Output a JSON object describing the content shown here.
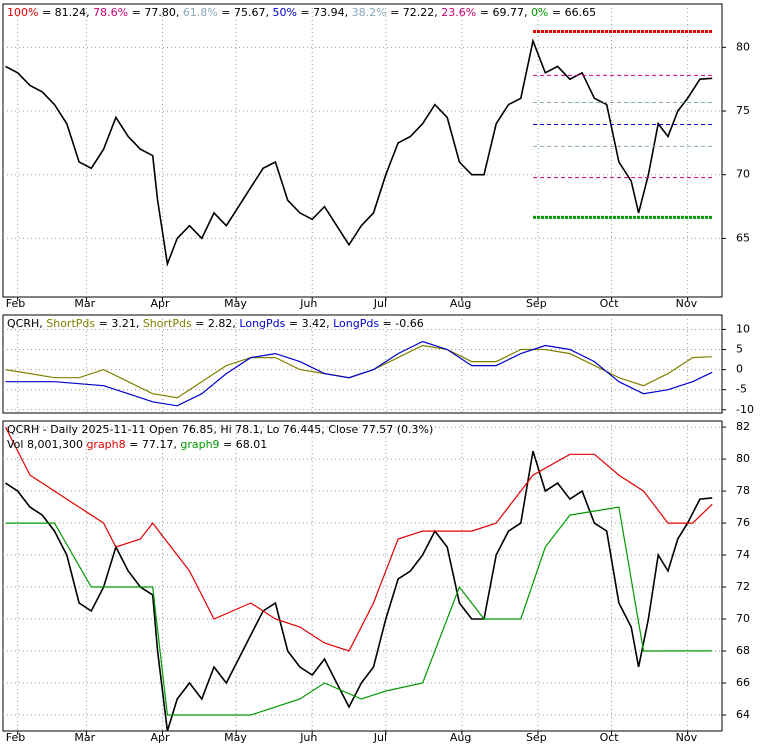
{
  "chart_data": [
    {
      "type": "line",
      "ticker": "",
      "legend": [
        {
          "name": "100%",
          "value": 81.24,
          "value_label": "= 81.24,",
          "color": "#e00000"
        },
        {
          "name": "78.6%",
          "value": 77.8,
          "value_label": "= 77.80,",
          "color": "#cc0077"
        },
        {
          "name": "61.8%",
          "value": 75.67,
          "value_label": "= 75.67,",
          "color": "#88aabb"
        },
        {
          "name": "50%",
          "value": 73.94,
          "value_label": "= 73.94,",
          "color": "#0000cc"
        },
        {
          "name": "38.2%",
          "value": 72.22,
          "value_label": "= 72.22,",
          "color": "#88aabb"
        },
        {
          "name": "23.6%",
          "value": 69.77,
          "value_label": "= 69.77,",
          "color": "#cc0077"
        },
        {
          "name": "0%",
          "value": 66.65,
          "value_label": "= 66.65",
          "color": "#009900"
        }
      ],
      "series": [
        {
          "name": "QCRH",
          "color": "#000000",
          "x": [
            0,
            5,
            10,
            15,
            20,
            25,
            30,
            35,
            40,
            45,
            50,
            55,
            60,
            62,
            66,
            70,
            75,
            80,
            85,
            90,
            95,
            100,
            105,
            110,
            115,
            120,
            125,
            130,
            135,
            140,
            145,
            150,
            155,
            160,
            165,
            170,
            175,
            180,
            185,
            190,
            195,
            200,
            205,
            210,
            215,
            220,
            225,
            230,
            235,
            240,
            245,
            250,
            255,
            258,
            262,
            266,
            270,
            274,
            278,
            283,
            288
          ],
          "values": [
            78.5,
            78,
            77,
            76.5,
            75.5,
            74,
            71,
            70.5,
            72,
            74.5,
            73,
            72,
            71.5,
            68,
            63,
            65,
            66,
            65,
            67,
            66,
            67.5,
            69,
            70.5,
            71,
            68,
            67,
            66.5,
            67.5,
            66,
            64.5,
            66,
            67,
            70,
            72.5,
            73,
            74,
            75.5,
            74.5,
            71,
            70,
            70,
            74,
            75.5,
            76,
            80.5,
            78,
            78.5,
            77.5,
            78,
            76,
            75.5,
            71,
            69.5,
            67,
            70,
            74,
            73,
            75,
            76,
            77.5,
            77.57
          ]
        }
      ],
      "xlim": [
        -1,
        292
      ],
      "xticks": [
        {
          "value": 5,
          "label": "Feb"
        },
        {
          "value": 33,
          "label": "Mar"
        },
        {
          "value": 64,
          "label": "Apr"
        },
        {
          "value": 94,
          "label": "May"
        },
        {
          "value": 125,
          "label": "Jun"
        },
        {
          "value": 155,
          "label": "Jul"
        },
        {
          "value": 186,
          "label": "Aug"
        },
        {
          "value": 217,
          "label": "Sep"
        },
        {
          "value": 247,
          "label": "Oct"
        },
        {
          "value": 278,
          "label": "Nov"
        }
      ],
      "ylim": [
        60.4,
        83.4
      ],
      "yticks": [
        65,
        70,
        75,
        80
      ],
      "grid": true
    },
    {
      "type": "line",
      "ticker": "QCRH,",
      "legend": [
        {
          "name": "ShortPds",
          "value": 3.21,
          "value_label": "= 3.21,",
          "color": "#808000"
        },
        {
          "name": "ShortPds",
          "value": 2.82,
          "value_label": "= 2.82,",
          "color": "#808000"
        },
        {
          "name": "LongPds",
          "value": 3.42,
          "value_label": "= 3.42,",
          "color": "#0000cc"
        },
        {
          "name": "LongPds",
          "value": -0.66,
          "value_label": "= -0.66",
          "color": "#0000cc"
        }
      ],
      "series": [
        {
          "name": "ShortPds",
          "color": "#808000",
          "x": [
            0,
            10,
            20,
            30,
            40,
            50,
            60,
            70,
            80,
            90,
            100,
            110,
            120,
            130,
            140,
            150,
            160,
            170,
            180,
            190,
            200,
            210,
            220,
            230,
            240,
            250,
            260,
            270,
            280,
            288
          ],
          "values": [
            0,
            -1,
            -2,
            -2,
            0,
            -3,
            -6,
            -7,
            -3,
            1,
            3,
            3,
            0,
            -1,
            -2,
            0,
            3,
            6,
            5,
            2,
            2,
            5,
            5,
            4,
            1,
            -2,
            -4,
            -1,
            3,
            3.21
          ]
        },
        {
          "name": "LongPds",
          "color": "#0000cc",
          "x": [
            0,
            10,
            20,
            30,
            40,
            50,
            60,
            70,
            80,
            90,
            100,
            110,
            120,
            130,
            140,
            150,
            160,
            170,
            180,
            190,
            200,
            210,
            220,
            230,
            240,
            250,
            260,
            270,
            280,
            288
          ],
          "values": [
            -3,
            -3,
            -3,
            -3.5,
            -4,
            -6,
            -8,
            -9,
            -6,
            -1,
            3,
            4,
            2,
            -1,
            -2,
            0,
            4,
            7,
            5,
            1,
            1,
            4,
            6,
            5,
            2,
            -3,
            -6,
            -5,
            -3,
            -0.66
          ]
        }
      ],
      "xlim": [
        -1,
        292
      ],
      "ylim": [
        -10.8,
        13.6
      ],
      "yticks": [
        -10,
        -5,
        0,
        5,
        10
      ],
      "grid": true
    },
    {
      "type": "line",
      "ticker": "QCRH - Daily 2025-11-11 Open 76.85, Hi 78.1, Lo 76.445, Close 77.57 (0.3%)",
      "annotation": "Vol 8,001,300",
      "legend": [
        {
          "name": "graph8",
          "value": 77.17,
          "value_label": "= 77.17,",
          "color": "#e00000"
        },
        {
          "name": "graph9",
          "value": 68.01,
          "value_label": "= 68.01",
          "color": "#009900"
        }
      ],
      "series": [
        {
          "name": "QCRH",
          "color": "#000000",
          "x": [
            0,
            5,
            10,
            15,
            20,
            25,
            30,
            35,
            40,
            45,
            50,
            55,
            60,
            62,
            66,
            70,
            75,
            80,
            85,
            90,
            95,
            100,
            105,
            110,
            115,
            120,
            125,
            130,
            135,
            140,
            145,
            150,
            155,
            160,
            165,
            170,
            175,
            180,
            185,
            190,
            195,
            200,
            205,
            210,
            215,
            220,
            225,
            230,
            235,
            240,
            245,
            250,
            255,
            258,
            262,
            266,
            270,
            274,
            278,
            283,
            288
          ],
          "values": [
            78.5,
            78,
            77,
            76.5,
            75.5,
            74,
            71,
            70.5,
            72,
            74.5,
            73,
            72,
            71.5,
            68,
            63,
            65,
            66,
            65,
            67,
            66,
            67.5,
            69,
            70.5,
            71,
            68,
            67,
            66.5,
            67.5,
            66,
            64.5,
            66,
            67,
            70,
            72.5,
            73,
            74,
            75.5,
            74.5,
            71,
            70,
            70,
            74,
            75.5,
            76,
            80.5,
            78,
            78.5,
            77.5,
            78,
            76,
            75.5,
            71,
            69.5,
            67,
            70,
            74,
            73,
            75,
            76,
            77.5,
            77.57
          ]
        },
        {
          "name": "graph8",
          "color": "#e00000",
          "x": [
            0,
            10,
            20,
            30,
            40,
            45,
            55,
            60,
            75,
            85,
            100,
            110,
            120,
            130,
            140,
            150,
            160,
            170,
            190,
            200,
            215,
            230,
            240,
            250,
            260,
            270,
            280,
            288
          ],
          "values": [
            82,
            79,
            78,
            77,
            76,
            74.5,
            75,
            76,
            73,
            70,
            71,
            70,
            69.5,
            68.5,
            68,
            71,
            75,
            75.5,
            75.5,
            76,
            79,
            80.3,
            80.3,
            79,
            78,
            76,
            76,
            77.17
          ]
        },
        {
          "name": "graph9",
          "color": "#009900",
          "x": [
            0,
            20,
            35,
            60,
            66,
            100,
            120,
            130,
            145,
            155,
            170,
            185,
            195,
            210,
            220,
            230,
            250,
            260,
            288
          ],
          "values": [
            76,
            76,
            72,
            72,
            64,
            64,
            65,
            66,
            65,
            65.5,
            66,
            72,
            70,
            70,
            74.5,
            76.5,
            77,
            68,
            68.01
          ]
        }
      ],
      "xlim": [
        -1,
        292
      ],
      "xticks": [
        {
          "value": 5,
          "label": "Feb"
        },
        {
          "value": 33,
          "label": "Mar"
        },
        {
          "value": 64,
          "label": "Apr"
        },
        {
          "value": 94,
          "label": "May"
        },
        {
          "value": 125,
          "label": "Jun"
        },
        {
          "value": 155,
          "label": "Jul"
        },
        {
          "value": 186,
          "label": "Aug"
        },
        {
          "value": 217,
          "label": "Sep"
        },
        {
          "value": 247,
          "label": "Oct"
        },
        {
          "value": 278,
          "label": "Nov"
        }
      ],
      "ylim": [
        63,
        82.38
      ],
      "yticks": [
        64,
        66,
        68,
        70,
        72,
        74,
        76,
        78,
        80,
        82
      ],
      "grid": true
    }
  ]
}
